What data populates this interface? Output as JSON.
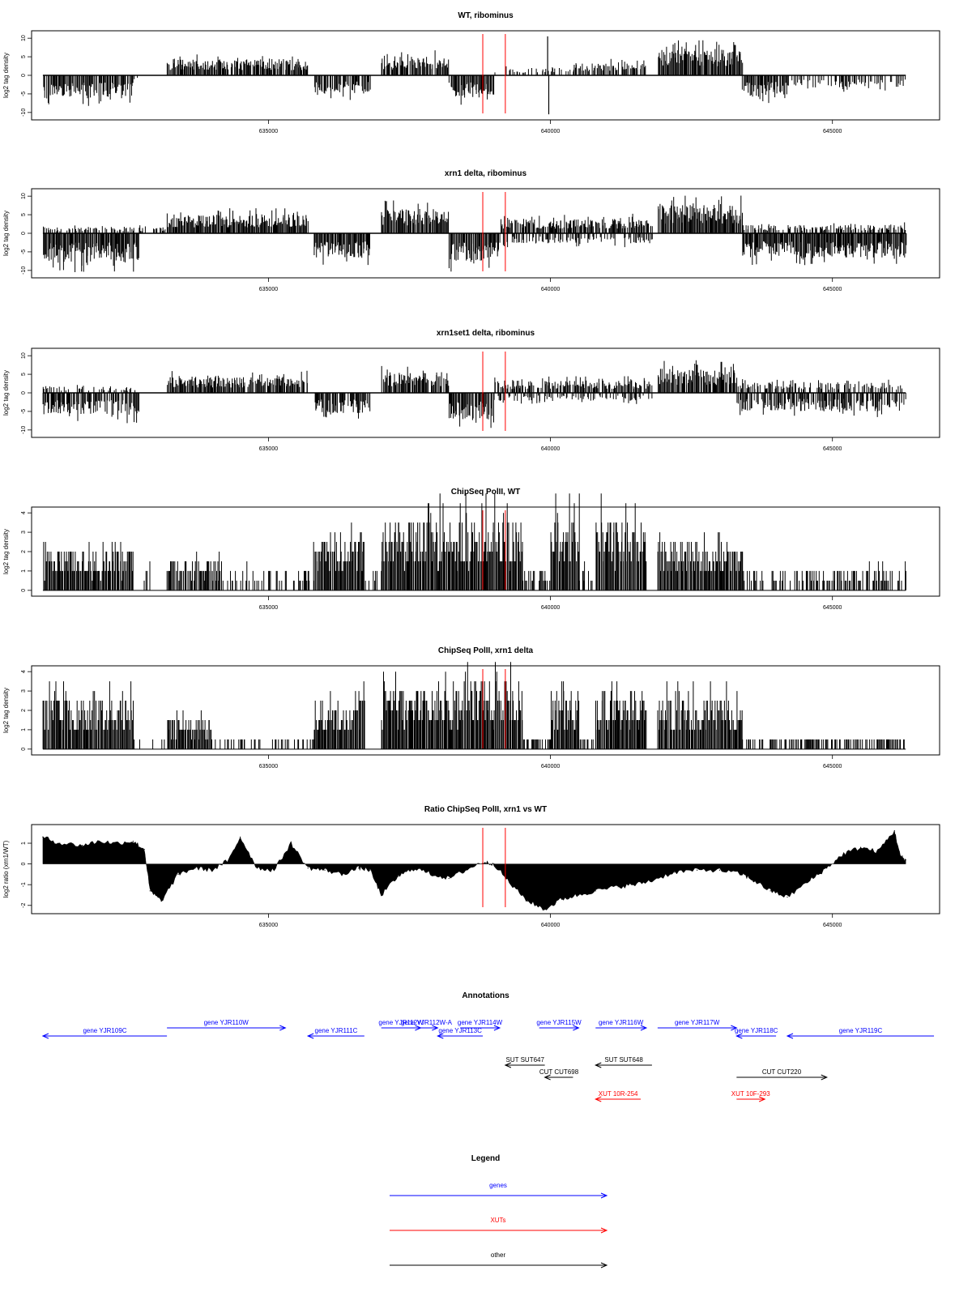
{
  "chart_data": [
    {
      "type": "bar",
      "title": "WT, ribominus",
      "xlabel": "",
      "ylabel": "log2 tag density",
      "xlim": [
        630800,
        646900
      ],
      "ylim": [
        -12,
        12
      ],
      "y_ticks": [
        -10,
        -5,
        0,
        5,
        10
      ],
      "x_ticks": [
        635000,
        640000,
        645000
      ],
      "markers": [
        638800,
        639200
      ],
      "segments": [
        {
          "start": 631000,
          "end": 632600,
          "sign": -1,
          "amp": 5.5,
          "density": 0.9
        },
        {
          "start": 632600,
          "end": 633200,
          "sign": -1,
          "amp": 1.0,
          "density": 0.05
        },
        {
          "start": 633200,
          "end": 635700,
          "sign": 1,
          "amp": 4.0,
          "density": 0.9
        },
        {
          "start": 635800,
          "end": 636800,
          "sign": -1,
          "amp": 4.5,
          "density": 0.85
        },
        {
          "start": 636800,
          "end": 637000,
          "sign": -1,
          "amp": 1.0,
          "density": 0.1
        },
        {
          "start": 637000,
          "end": 638200,
          "sign": 1,
          "amp": 4.5,
          "density": 0.85
        },
        {
          "start": 638200,
          "end": 639000,
          "sign": -1,
          "amp": 5.5,
          "density": 0.9
        },
        {
          "start": 639000,
          "end": 640400,
          "sign": 1,
          "amp": 2.0,
          "density": 0.3
        },
        {
          "start": 640400,
          "end": 641700,
          "sign": 1,
          "amp": 3.0,
          "density": 0.8
        },
        {
          "start": 641900,
          "end": 643400,
          "sign": 1,
          "amp": 6.5,
          "density": 1.0
        },
        {
          "start": 643400,
          "end": 644200,
          "sign": -1,
          "amp": 5.0,
          "density": 0.85
        },
        {
          "start": 644200,
          "end": 646300,
          "sign": -1,
          "amp": 3.0,
          "density": 0.45
        }
      ],
      "spikes": [
        {
          "x": 639950,
          "value": 10.5
        },
        {
          "x": 639970,
          "value": -10.5
        }
      ]
    },
    {
      "type": "bar",
      "title": "xrn1 delta, ribominus",
      "xlabel": "",
      "ylabel": "log2 tag density",
      "xlim": [
        630800,
        646900
      ],
      "ylim": [
        -12,
        12
      ],
      "y_ticks": [
        -10,
        -5,
        0,
        5,
        10
      ],
      "x_ticks": [
        635000,
        640000,
        645000
      ],
      "markers": [
        638800,
        639200
      ],
      "segments": [
        {
          "start": 631000,
          "end": 632700,
          "sign": -1,
          "amp": 7.0,
          "density": 1.0
        },
        {
          "start": 631000,
          "end": 633200,
          "sign": 1,
          "amp": 1.5,
          "density": 0.5
        },
        {
          "start": 633200,
          "end": 635700,
          "sign": 1,
          "amp": 4.5,
          "density": 1.0
        },
        {
          "start": 635800,
          "end": 636800,
          "sign": -1,
          "amp": 6.0,
          "density": 1.0
        },
        {
          "start": 637000,
          "end": 638200,
          "sign": 1,
          "amp": 6.0,
          "density": 1.0
        },
        {
          "start": 638200,
          "end": 639100,
          "sign": -1,
          "amp": 7.0,
          "density": 1.0
        },
        {
          "start": 639100,
          "end": 641800,
          "sign": 1,
          "amp": 3.5,
          "density": 0.85
        },
        {
          "start": 639100,
          "end": 641800,
          "sign": -1,
          "amp": 2.5,
          "density": 0.4
        },
        {
          "start": 641900,
          "end": 643400,
          "sign": 1,
          "amp": 7.0,
          "density": 1.0
        },
        {
          "start": 643400,
          "end": 646300,
          "sign": -1,
          "amp": 6.0,
          "density": 1.0
        },
        {
          "start": 643400,
          "end": 646300,
          "sign": 1,
          "amp": 2.0,
          "density": 0.5
        }
      ],
      "spikes": []
    },
    {
      "type": "bar",
      "title": "xrn1set1 delta, ribominus",
      "xlabel": "",
      "ylabel": "log2 tag density",
      "xlim": [
        630800,
        646900
      ],
      "ylim": [
        -12,
        12
      ],
      "y_ticks": [
        -10,
        -5,
        0,
        5,
        10
      ],
      "x_ticks": [
        635000,
        640000,
        645000
      ],
      "markers": [
        638800,
        639200
      ],
      "segments": [
        {
          "start": 631000,
          "end": 632700,
          "sign": -1,
          "amp": 5.5,
          "density": 0.8
        },
        {
          "start": 631000,
          "end": 632700,
          "sign": 1,
          "amp": 1.5,
          "density": 0.3
        },
        {
          "start": 633200,
          "end": 635700,
          "sign": 1,
          "amp": 4.0,
          "density": 0.85
        },
        {
          "start": 635800,
          "end": 636800,
          "sign": -1,
          "amp": 5.0,
          "density": 0.8
        },
        {
          "start": 637000,
          "end": 638200,
          "sign": 1,
          "amp": 5.0,
          "density": 0.85
        },
        {
          "start": 638200,
          "end": 639000,
          "sign": -1,
          "amp": 6.5,
          "density": 0.9
        },
        {
          "start": 639000,
          "end": 641800,
          "sign": 1,
          "amp": 3.0,
          "density": 0.75
        },
        {
          "start": 639000,
          "end": 641800,
          "sign": -1,
          "amp": 2.0,
          "density": 0.4
        },
        {
          "start": 641900,
          "end": 643300,
          "sign": 1,
          "amp": 6.0,
          "density": 0.9
        },
        {
          "start": 643300,
          "end": 646300,
          "sign": -1,
          "amp": 4.5,
          "density": 0.7
        },
        {
          "start": 643300,
          "end": 646300,
          "sign": 1,
          "amp": 2.5,
          "density": 0.5
        }
      ],
      "spikes": []
    },
    {
      "type": "bar",
      "title": "ChipSeq PolII, WT",
      "xlabel": "",
      "ylabel": "log2 tag density",
      "xlim": [
        630800,
        646900
      ],
      "ylim": [
        -0.3,
        4.3
      ],
      "y_ticks": [
        0,
        1,
        2,
        3,
        4
      ],
      "x_ticks": [
        635000,
        640000,
        645000
      ],
      "markers": [
        638800,
        639200
      ],
      "segments": [
        {
          "start": 631000,
          "end": 632600,
          "sign": 1,
          "amp": 2.0,
          "density": 1.0
        },
        {
          "start": 632600,
          "end": 633200,
          "sign": 1,
          "amp": 1.0,
          "density": 0.1
        },
        {
          "start": 633200,
          "end": 634200,
          "sign": 1,
          "amp": 1.5,
          "density": 0.8
        },
        {
          "start": 634200,
          "end": 635800,
          "sign": 1,
          "amp": 1.0,
          "density": 0.3
        },
        {
          "start": 635800,
          "end": 636700,
          "sign": 1,
          "amp": 2.5,
          "density": 1.0
        },
        {
          "start": 636700,
          "end": 637000,
          "sign": 1,
          "amp": 1.0,
          "density": 0.2
        },
        {
          "start": 637000,
          "end": 638400,
          "sign": 1,
          "amp": 3.3,
          "density": 1.0
        },
        {
          "start": 638400,
          "end": 639500,
          "sign": 1,
          "amp": 3.3,
          "density": 1.0
        },
        {
          "start": 639500,
          "end": 640000,
          "sign": 1,
          "amp": 1.0,
          "density": 0.6
        },
        {
          "start": 640000,
          "end": 640500,
          "sign": 1,
          "amp": 3.5,
          "density": 1.0
        },
        {
          "start": 640500,
          "end": 640800,
          "sign": 1,
          "amp": 1.0,
          "density": 0.5
        },
        {
          "start": 640800,
          "end": 641700,
          "sign": 1,
          "amp": 3.3,
          "density": 1.0
        },
        {
          "start": 641700,
          "end": 641900,
          "sign": 1,
          "amp": 1.0,
          "density": 0.1
        },
        {
          "start": 641900,
          "end": 643400,
          "sign": 1,
          "amp": 2.2,
          "density": 1.0
        },
        {
          "start": 643400,
          "end": 646300,
          "sign": 1,
          "amp": 1.0,
          "density": 0.5
        }
      ],
      "spikes": []
    },
    {
      "type": "bar",
      "title": "ChipSeq PolII, xrn1 delta",
      "xlabel": "",
      "ylabel": "log2 tag density",
      "xlim": [
        630800,
        646900
      ],
      "ylim": [
        -0.3,
        4.3
      ],
      "y_ticks": [
        0,
        1,
        2,
        3,
        4
      ],
      "x_ticks": [
        635000,
        640000,
        645000
      ],
      "markers": [
        638800,
        639200
      ],
      "segments": [
        {
          "start": 631000,
          "end": 632600,
          "sign": 1,
          "amp": 2.5,
          "density": 1.0
        },
        {
          "start": 632600,
          "end": 633200,
          "sign": 1,
          "amp": 0.3,
          "density": 0.05
        },
        {
          "start": 633200,
          "end": 634000,
          "sign": 1,
          "amp": 1.5,
          "density": 1.0
        },
        {
          "start": 634000,
          "end": 635800,
          "sign": 1,
          "amp": 0.5,
          "density": 0.3
        },
        {
          "start": 635800,
          "end": 636700,
          "sign": 1,
          "amp": 2.3,
          "density": 1.0
        },
        {
          "start": 636700,
          "end": 637000,
          "sign": 1,
          "amp": 0.3,
          "density": 0.1
        },
        {
          "start": 637000,
          "end": 638400,
          "sign": 1,
          "amp": 3.0,
          "density": 1.0
        },
        {
          "start": 638400,
          "end": 639500,
          "sign": 1,
          "amp": 3.3,
          "density": 1.0
        },
        {
          "start": 639500,
          "end": 640000,
          "sign": 1,
          "amp": 0.5,
          "density": 0.5
        },
        {
          "start": 640000,
          "end": 640500,
          "sign": 1,
          "amp": 2.8,
          "density": 1.0
        },
        {
          "start": 640500,
          "end": 640800,
          "sign": 1,
          "amp": 0.5,
          "density": 0.3
        },
        {
          "start": 640800,
          "end": 641700,
          "sign": 1,
          "amp": 2.7,
          "density": 1.0
        },
        {
          "start": 641700,
          "end": 641900,
          "sign": 1,
          "amp": 0.3,
          "density": 0.1
        },
        {
          "start": 641900,
          "end": 643400,
          "sign": 1,
          "amp": 2.3,
          "density": 1.0
        },
        {
          "start": 643400,
          "end": 646300,
          "sign": 1,
          "amp": 0.5,
          "density": 0.5
        }
      ],
      "spikes": []
    },
    {
      "type": "area",
      "title": "Ratio ChipSeq PolII, xrn1 vs WT",
      "xlabel": "",
      "ylabel": "log2 ratio (xrn1/WT)",
      "xlim": [
        630800,
        646900
      ],
      "ylim": [
        -2.4,
        1.9
      ],
      "y_ticks": [
        -2,
        -1,
        0,
        1
      ],
      "x_ticks": [
        635000,
        640000,
        645000
      ],
      "markers": [
        638800,
        639200
      ],
      "x": [
        631000,
        631300,
        631700,
        632000,
        632300,
        632600,
        632800,
        632900,
        633100,
        633400,
        633700,
        634000,
        634300,
        634500,
        634800,
        635100,
        635400,
        635700,
        636000,
        636300,
        636600,
        636800,
        637000,
        637300,
        637600,
        637900,
        638200,
        638500,
        638800,
        639000,
        639300,
        639600,
        639900,
        640200,
        640500,
        640800,
        641200,
        641500,
        641800,
        642200,
        642600,
        643000,
        643400,
        643600,
        643900,
        644200,
        644600,
        644900,
        645200,
        645500,
        645800,
        646100,
        646200,
        646300
      ],
      "values": [
        1.3,
        1.0,
        0.9,
        1.1,
        1.0,
        1.1,
        0.7,
        -1.3,
        -1.8,
        -0.5,
        -0.2,
        -0.3,
        0.2,
        1.3,
        -0.2,
        -0.3,
        1.0,
        -0.2,
        -0.3,
        -0.5,
        -0.2,
        -0.3,
        -1.5,
        -0.6,
        -0.2,
        -0.5,
        -0.7,
        -0.3,
        0.1,
        0.0,
        -1.0,
        -1.8,
        -2.2,
        -1.7,
        -1.5,
        -1.3,
        -1.1,
        -1.0,
        -0.8,
        -0.4,
        -0.3,
        -0.3,
        -0.5,
        -0.8,
        -1.3,
        -1.6,
        -0.8,
        -0.2,
        0.5,
        0.8,
        0.6,
        1.6,
        0.4,
        0.2
      ]
    }
  ],
  "annotations": {
    "title": "Annotations",
    "xlim": [
      630800,
      646900
    ],
    "items": [
      {
        "label": "gene YJR109C",
        "type": "gene",
        "start": 631000,
        "end": 633200,
        "dir": "-",
        "row": 1
      },
      {
        "label": "gene YJR110W",
        "type": "gene",
        "start": 633200,
        "end": 635300,
        "dir": "+",
        "row": 0
      },
      {
        "label": "gene YJR111C",
        "type": "gene",
        "start": 635700,
        "end": 636700,
        "dir": "-",
        "row": 1
      },
      {
        "label": "gene YJR112W",
        "type": "gene",
        "start": 637000,
        "end": 637700,
        "dir": "+",
        "row": 0
      },
      {
        "label": "gene YJR112W-A",
        "type": "gene",
        "start": 637600,
        "end": 638000,
        "dir": "+",
        "row": 0
      },
      {
        "label": "gene YJR113C",
        "type": "gene",
        "start": 638000,
        "end": 638800,
        "dir": "-",
        "row": 1
      },
      {
        "label": "gene YJR114W",
        "type": "gene",
        "start": 638400,
        "end": 639100,
        "dir": "+",
        "row": 0
      },
      {
        "label": "gene YJR115W",
        "type": "gene",
        "start": 639800,
        "end": 640500,
        "dir": "+",
        "row": 0
      },
      {
        "label": "gene YJR116W",
        "type": "gene",
        "start": 640800,
        "end": 641700,
        "dir": "+",
        "row": 0
      },
      {
        "label": "gene YJR117W",
        "type": "gene",
        "start": 641900,
        "end": 643300,
        "dir": "+",
        "row": 0
      },
      {
        "label": "gene YJR118C",
        "type": "gene",
        "start": 643300,
        "end": 644000,
        "dir": "-",
        "row": 1
      },
      {
        "label": "gene YJR119C",
        "type": "gene",
        "start": 644200,
        "end": 646800,
        "dir": "-",
        "row": 1
      },
      {
        "label": "SUT SUT647",
        "type": "other",
        "start": 639200,
        "end": 639900,
        "dir": "-",
        "row": 2
      },
      {
        "label": "SUT SUT648",
        "type": "other",
        "start": 640800,
        "end": 641800,
        "dir": "-",
        "row": 2
      },
      {
        "label": "CUT CUT698",
        "type": "other",
        "start": 639900,
        "end": 640400,
        "dir": "-",
        "row": 3
      },
      {
        "label": "CUT CUT220",
        "type": "other",
        "start": 643300,
        "end": 644900,
        "dir": "+",
        "row": 3
      },
      {
        "label": "XUT 10R-254",
        "type": "xut",
        "start": 640800,
        "end": 641600,
        "dir": "-",
        "row": 4
      },
      {
        "label": "XUT 10F-293",
        "type": "xut",
        "start": 643300,
        "end": 643800,
        "dir": "+",
        "row": 4
      }
    ]
  },
  "legend": {
    "title": "Legend",
    "items": [
      {
        "label": "genes",
        "type": "gene"
      },
      {
        "label": "XUTs",
        "type": "xut"
      },
      {
        "label": "other",
        "type": "other"
      }
    ]
  },
  "colors": {
    "gene": "#0000ff",
    "xut": "#ff0000",
    "other": "#000000",
    "marker": "#ff0000"
  }
}
